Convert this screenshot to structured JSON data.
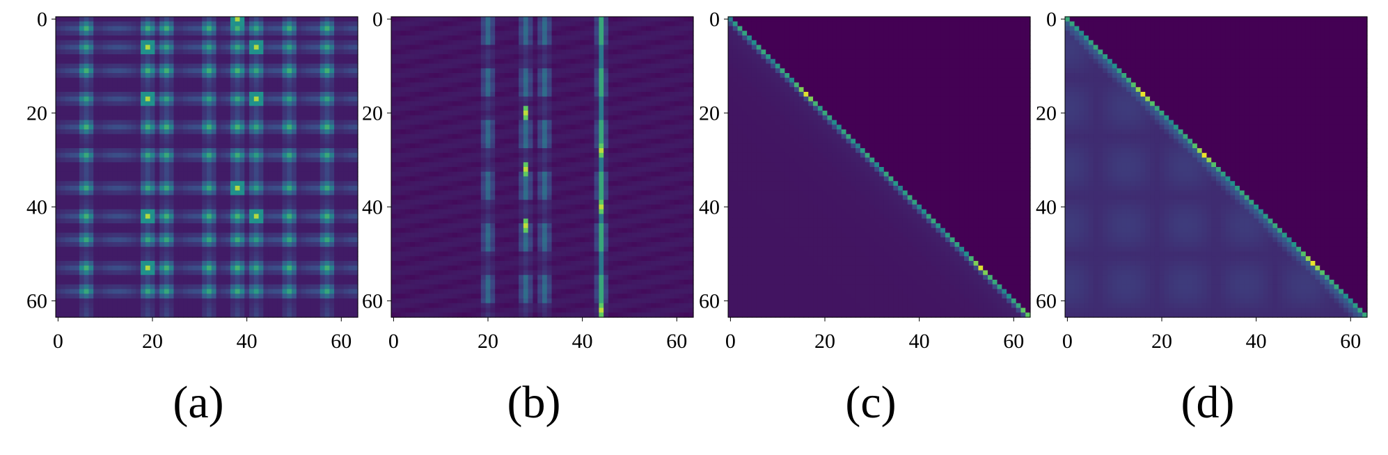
{
  "chart_data": [
    {
      "panel": "a",
      "type": "heatmap",
      "caption": "(a)",
      "pattern": "periodic",
      "size": 64,
      "xlim": [
        0,
        63
      ],
      "ylim": [
        0,
        63
      ],
      "x_ticks": [
        "0",
        "20",
        "40",
        "60"
      ],
      "y_ticks": [
        "0",
        "20",
        "40",
        "60"
      ],
      "bright_rows": [
        2,
        6,
        11,
        17,
        23,
        29,
        36,
        42,
        47,
        53,
        58
      ],
      "bright_cols": [
        6,
        19,
        23,
        32,
        38,
        42,
        49,
        57
      ],
      "strong_cells": [
        [
          6,
          19
        ],
        [
          17,
          19
        ],
        [
          42,
          19
        ],
        [
          53,
          19
        ],
        [
          17,
          42
        ],
        [
          42,
          42
        ],
        [
          6,
          42
        ],
        [
          36,
          38
        ],
        [
          0,
          38
        ]
      ]
    },
    {
      "panel": "b",
      "type": "heatmap",
      "caption": "(b)",
      "pattern": "column",
      "size": 64,
      "xlim": [
        0,
        63
      ],
      "ylim": [
        0,
        63
      ],
      "x_ticks": [
        "0",
        "20",
        "40",
        "60"
      ],
      "y_ticks": [
        "0",
        "20",
        "40",
        "60"
      ],
      "bright_cols": [
        20,
        28,
        32,
        44
      ],
      "strong_cells": [
        [
          28,
          44
        ],
        [
          40,
          44
        ],
        [
          62,
          44
        ],
        [
          20,
          28
        ],
        [
          32,
          28
        ],
        [
          44,
          28
        ]
      ]
    },
    {
      "panel": "c",
      "type": "heatmap",
      "caption": "(c)",
      "pattern": "diagonal",
      "size": 64,
      "xlim": [
        0,
        63
      ],
      "ylim": [
        0,
        63
      ],
      "x_ticks": [
        "0",
        "20",
        "40",
        "60"
      ],
      "y_ticks": [
        "0",
        "20",
        "40",
        "60"
      ],
      "diagonal_peaks": [
        16,
        53
      ]
    },
    {
      "panel": "d",
      "type": "heatmap",
      "caption": "(d)",
      "pattern": "lower-triangle",
      "size": 64,
      "xlim": [
        0,
        63
      ],
      "ylim": [
        0,
        63
      ],
      "x_ticks": [
        "0",
        "20",
        "40",
        "60"
      ],
      "y_ticks": [
        "0",
        "20",
        "40",
        "60"
      ],
      "diagonal_peaks": [
        16,
        29,
        52
      ]
    }
  ],
  "colormap": [
    "#440154",
    "#3b528b",
    "#21918c",
    "#5ec962",
    "#fde725"
  ]
}
